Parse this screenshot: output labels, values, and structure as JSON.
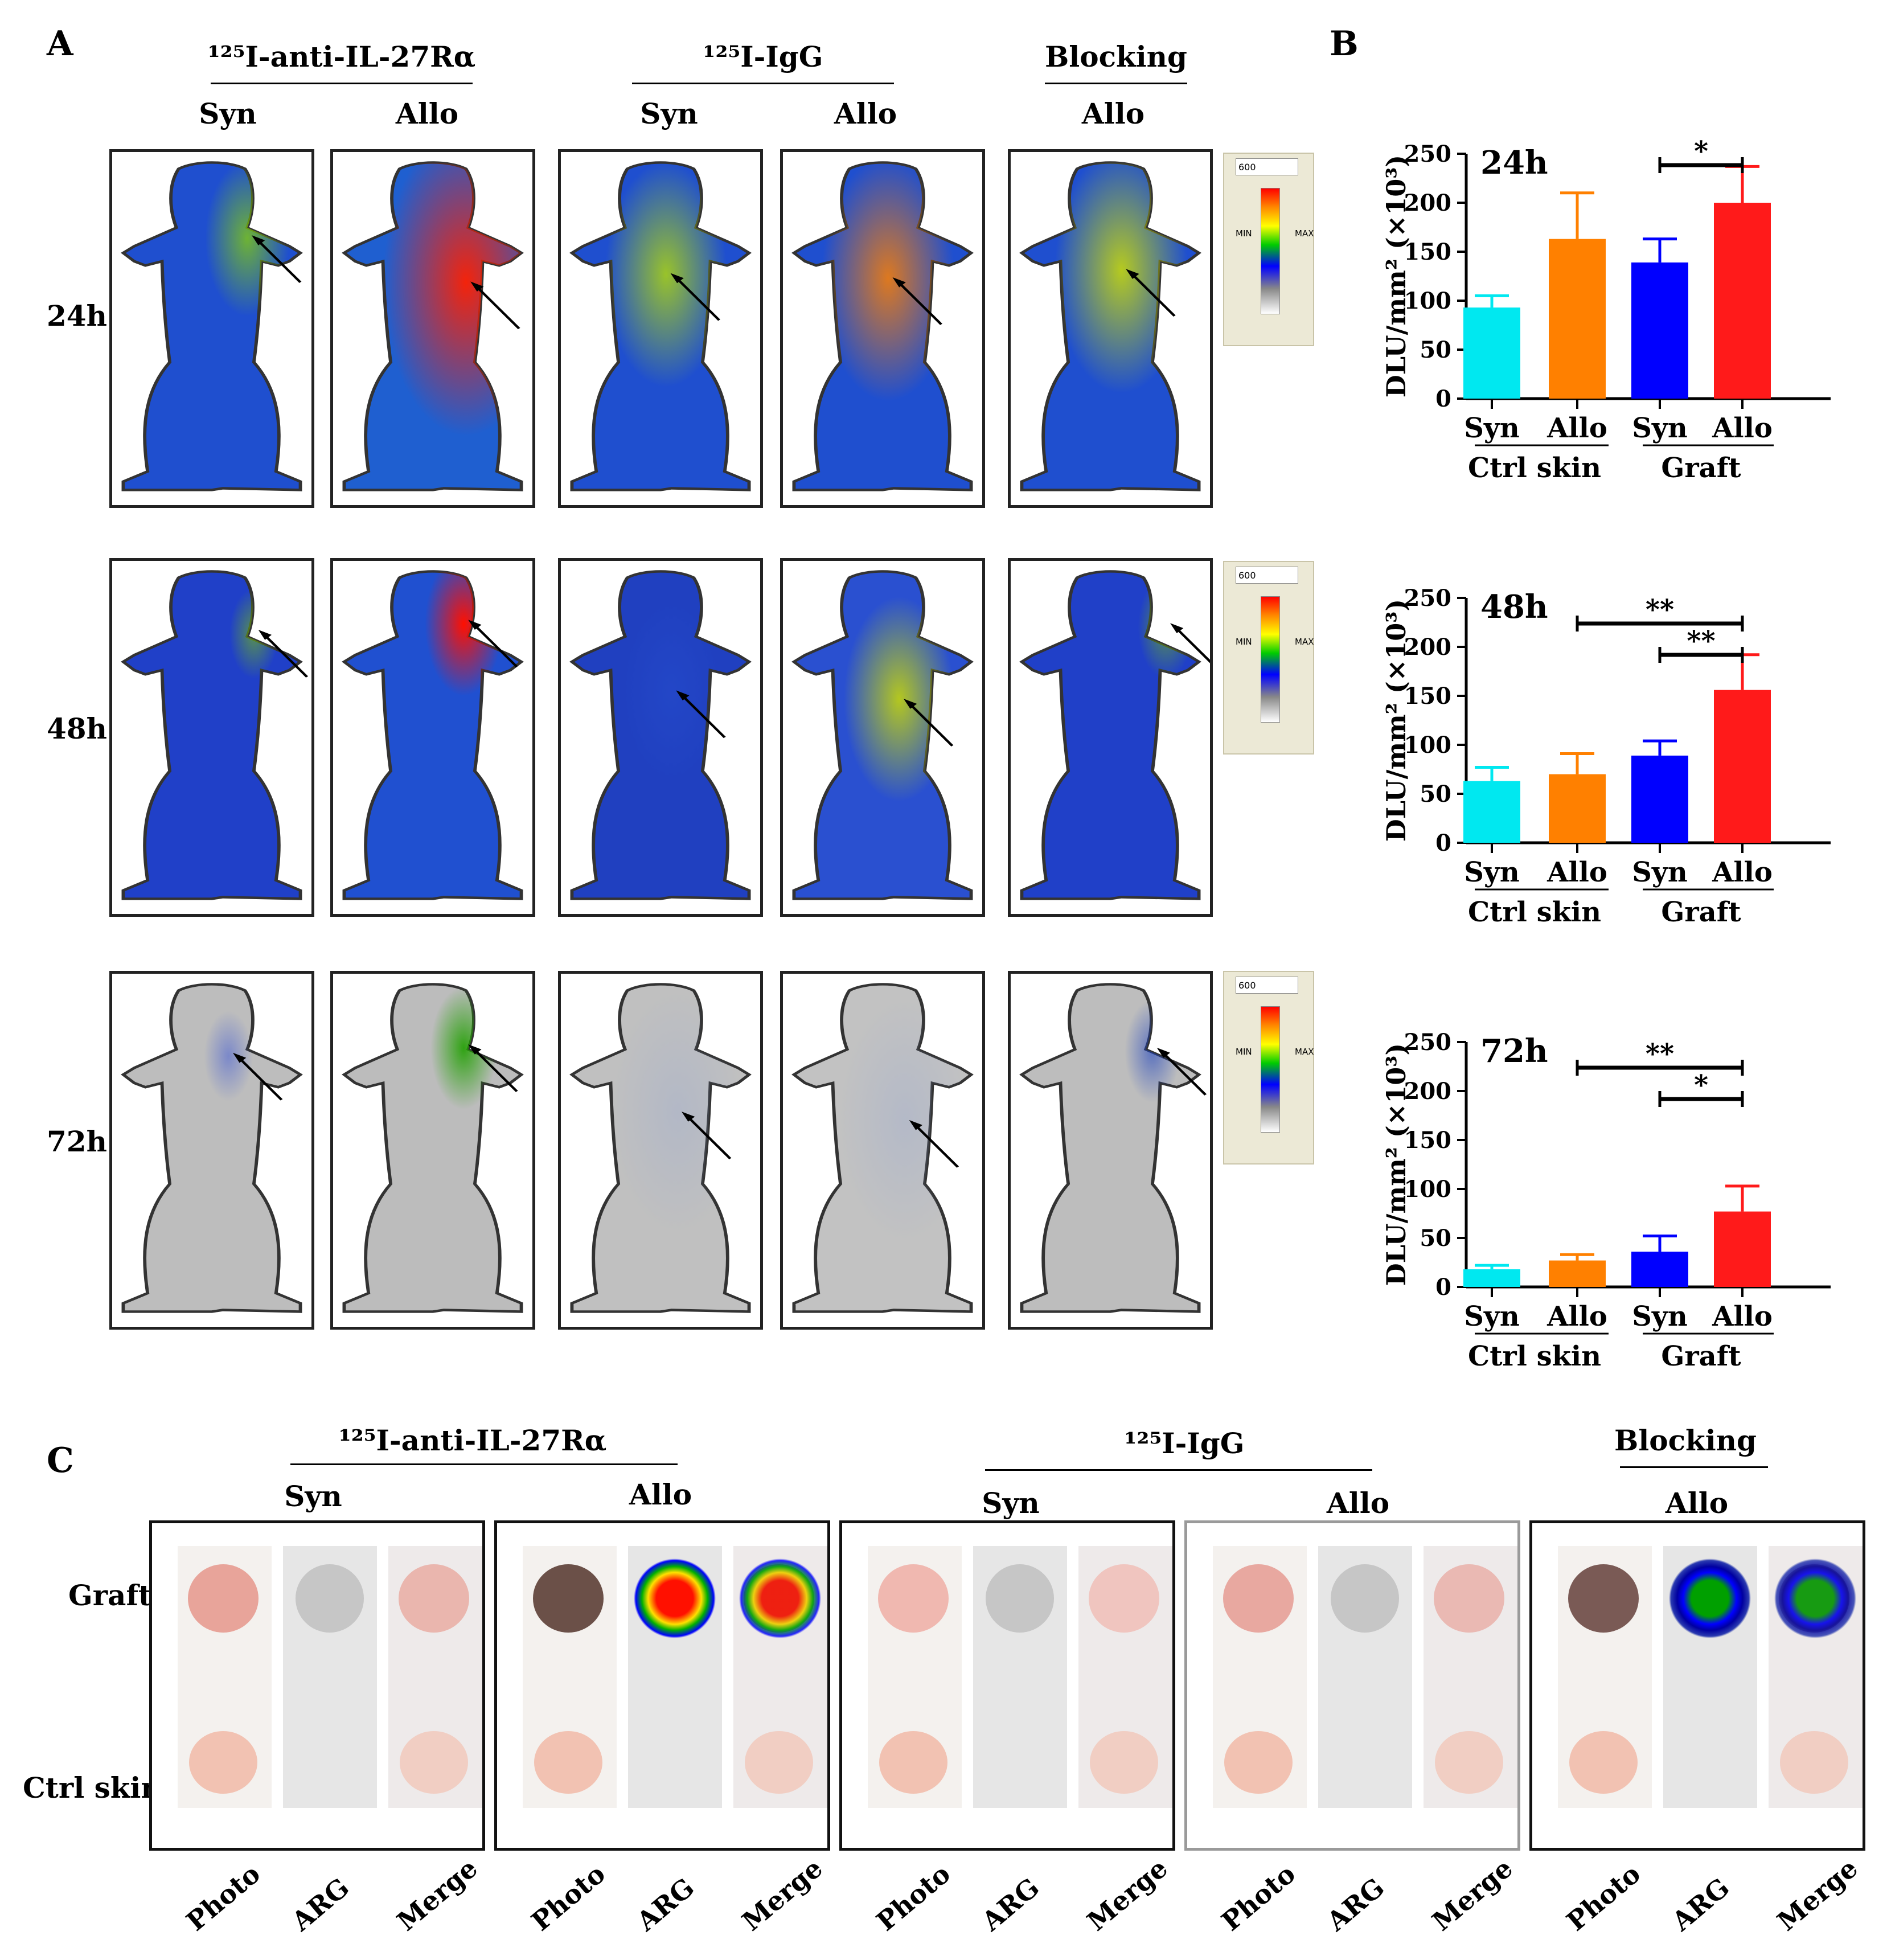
{
  "panelA": {
    "letter": "A",
    "groups": [
      {
        "label": "¹²⁵I-anti-IL-27Rα",
        "cols": [
          "Syn",
          "Allo"
        ]
      },
      {
        "label": "¹²⁵I-IgG",
        "cols": [
          "Syn",
          "Allo"
        ]
      },
      {
        "label": "Blocking",
        "cols": [
          "Allo"
        ]
      }
    ],
    "rows": [
      "24h",
      "48h",
      "72h"
    ],
    "scale": {
      "value": "600",
      "min_label": "MIN",
      "max_label": "MAX"
    }
  },
  "panelB": {
    "letter": "B"
  },
  "chart_data": [
    {
      "type": "bar",
      "title": "24h",
      "ylabel": "DLU/mm² (×10³)",
      "ylim": [
        0,
        250
      ],
      "yticks": [
        0,
        50,
        100,
        150,
        200,
        250
      ],
      "categories": [
        "Syn",
        "Allo",
        "Syn",
        "Allo"
      ],
      "groups": [
        "Ctrl skin",
        "Graft"
      ],
      "values": [
        93,
        163,
        139,
        200
      ],
      "errors": [
        12,
        47,
        24,
        37
      ],
      "colors": [
        "#00e8f0",
        "#ff8000",
        "#0000ff",
        "#ff1a1a"
      ],
      "significance": [
        {
          "from": 2,
          "to": 3,
          "label": "*"
        }
      ]
    },
    {
      "type": "bar",
      "title": "48h",
      "ylabel": "DLU/mm² (×10³)",
      "ylim": [
        0,
        250
      ],
      "yticks": [
        0,
        50,
        100,
        150,
        200,
        250
      ],
      "categories": [
        "Syn",
        "Allo",
        "Syn",
        "Allo"
      ],
      "groups": [
        "Ctrl skin",
        "Graft"
      ],
      "values": [
        63,
        70,
        89,
        156
      ],
      "errors": [
        14,
        21,
        15,
        36
      ],
      "colors": [
        "#00e8f0",
        "#ff8000",
        "#0000ff",
        "#ff1a1a"
      ],
      "significance": [
        {
          "from": 1,
          "to": 3,
          "label": "**"
        },
        {
          "from": 2,
          "to": 3,
          "label": "**"
        }
      ]
    },
    {
      "type": "bar",
      "title": "72h",
      "ylabel": "DLU/mm² (×10³)",
      "ylim": [
        0,
        250
      ],
      "yticks": [
        0,
        50,
        100,
        150,
        200,
        250
      ],
      "categories": [
        "Syn",
        "Allo",
        "Syn",
        "Allo"
      ],
      "groups": [
        "Ctrl skin",
        "Graft"
      ],
      "values": [
        18,
        27,
        36,
        77
      ],
      "errors": [
        4,
        6,
        16,
        26
      ],
      "colors": [
        "#00e8f0",
        "#ff8000",
        "#0000ff",
        "#ff1a1a"
      ],
      "significance": [
        {
          "from": 1,
          "to": 3,
          "label": "**"
        },
        {
          "from": 2,
          "to": 3,
          "label": "*"
        }
      ]
    }
  ],
  "panelC": {
    "letter": "C",
    "groups": [
      {
        "label": "¹²⁵I-anti-IL-27Rα"
      },
      {
        "label": "¹²⁵I-IgG"
      },
      {
        "label": "Blocking"
      }
    ],
    "boxes": [
      "Syn",
      "Allo",
      "Syn",
      "Allo",
      "Allo"
    ],
    "row_labels": [
      "Graft",
      "Ctrl skin"
    ],
    "strip_labels": [
      "Photo",
      "ARG",
      "Merge"
    ]
  }
}
